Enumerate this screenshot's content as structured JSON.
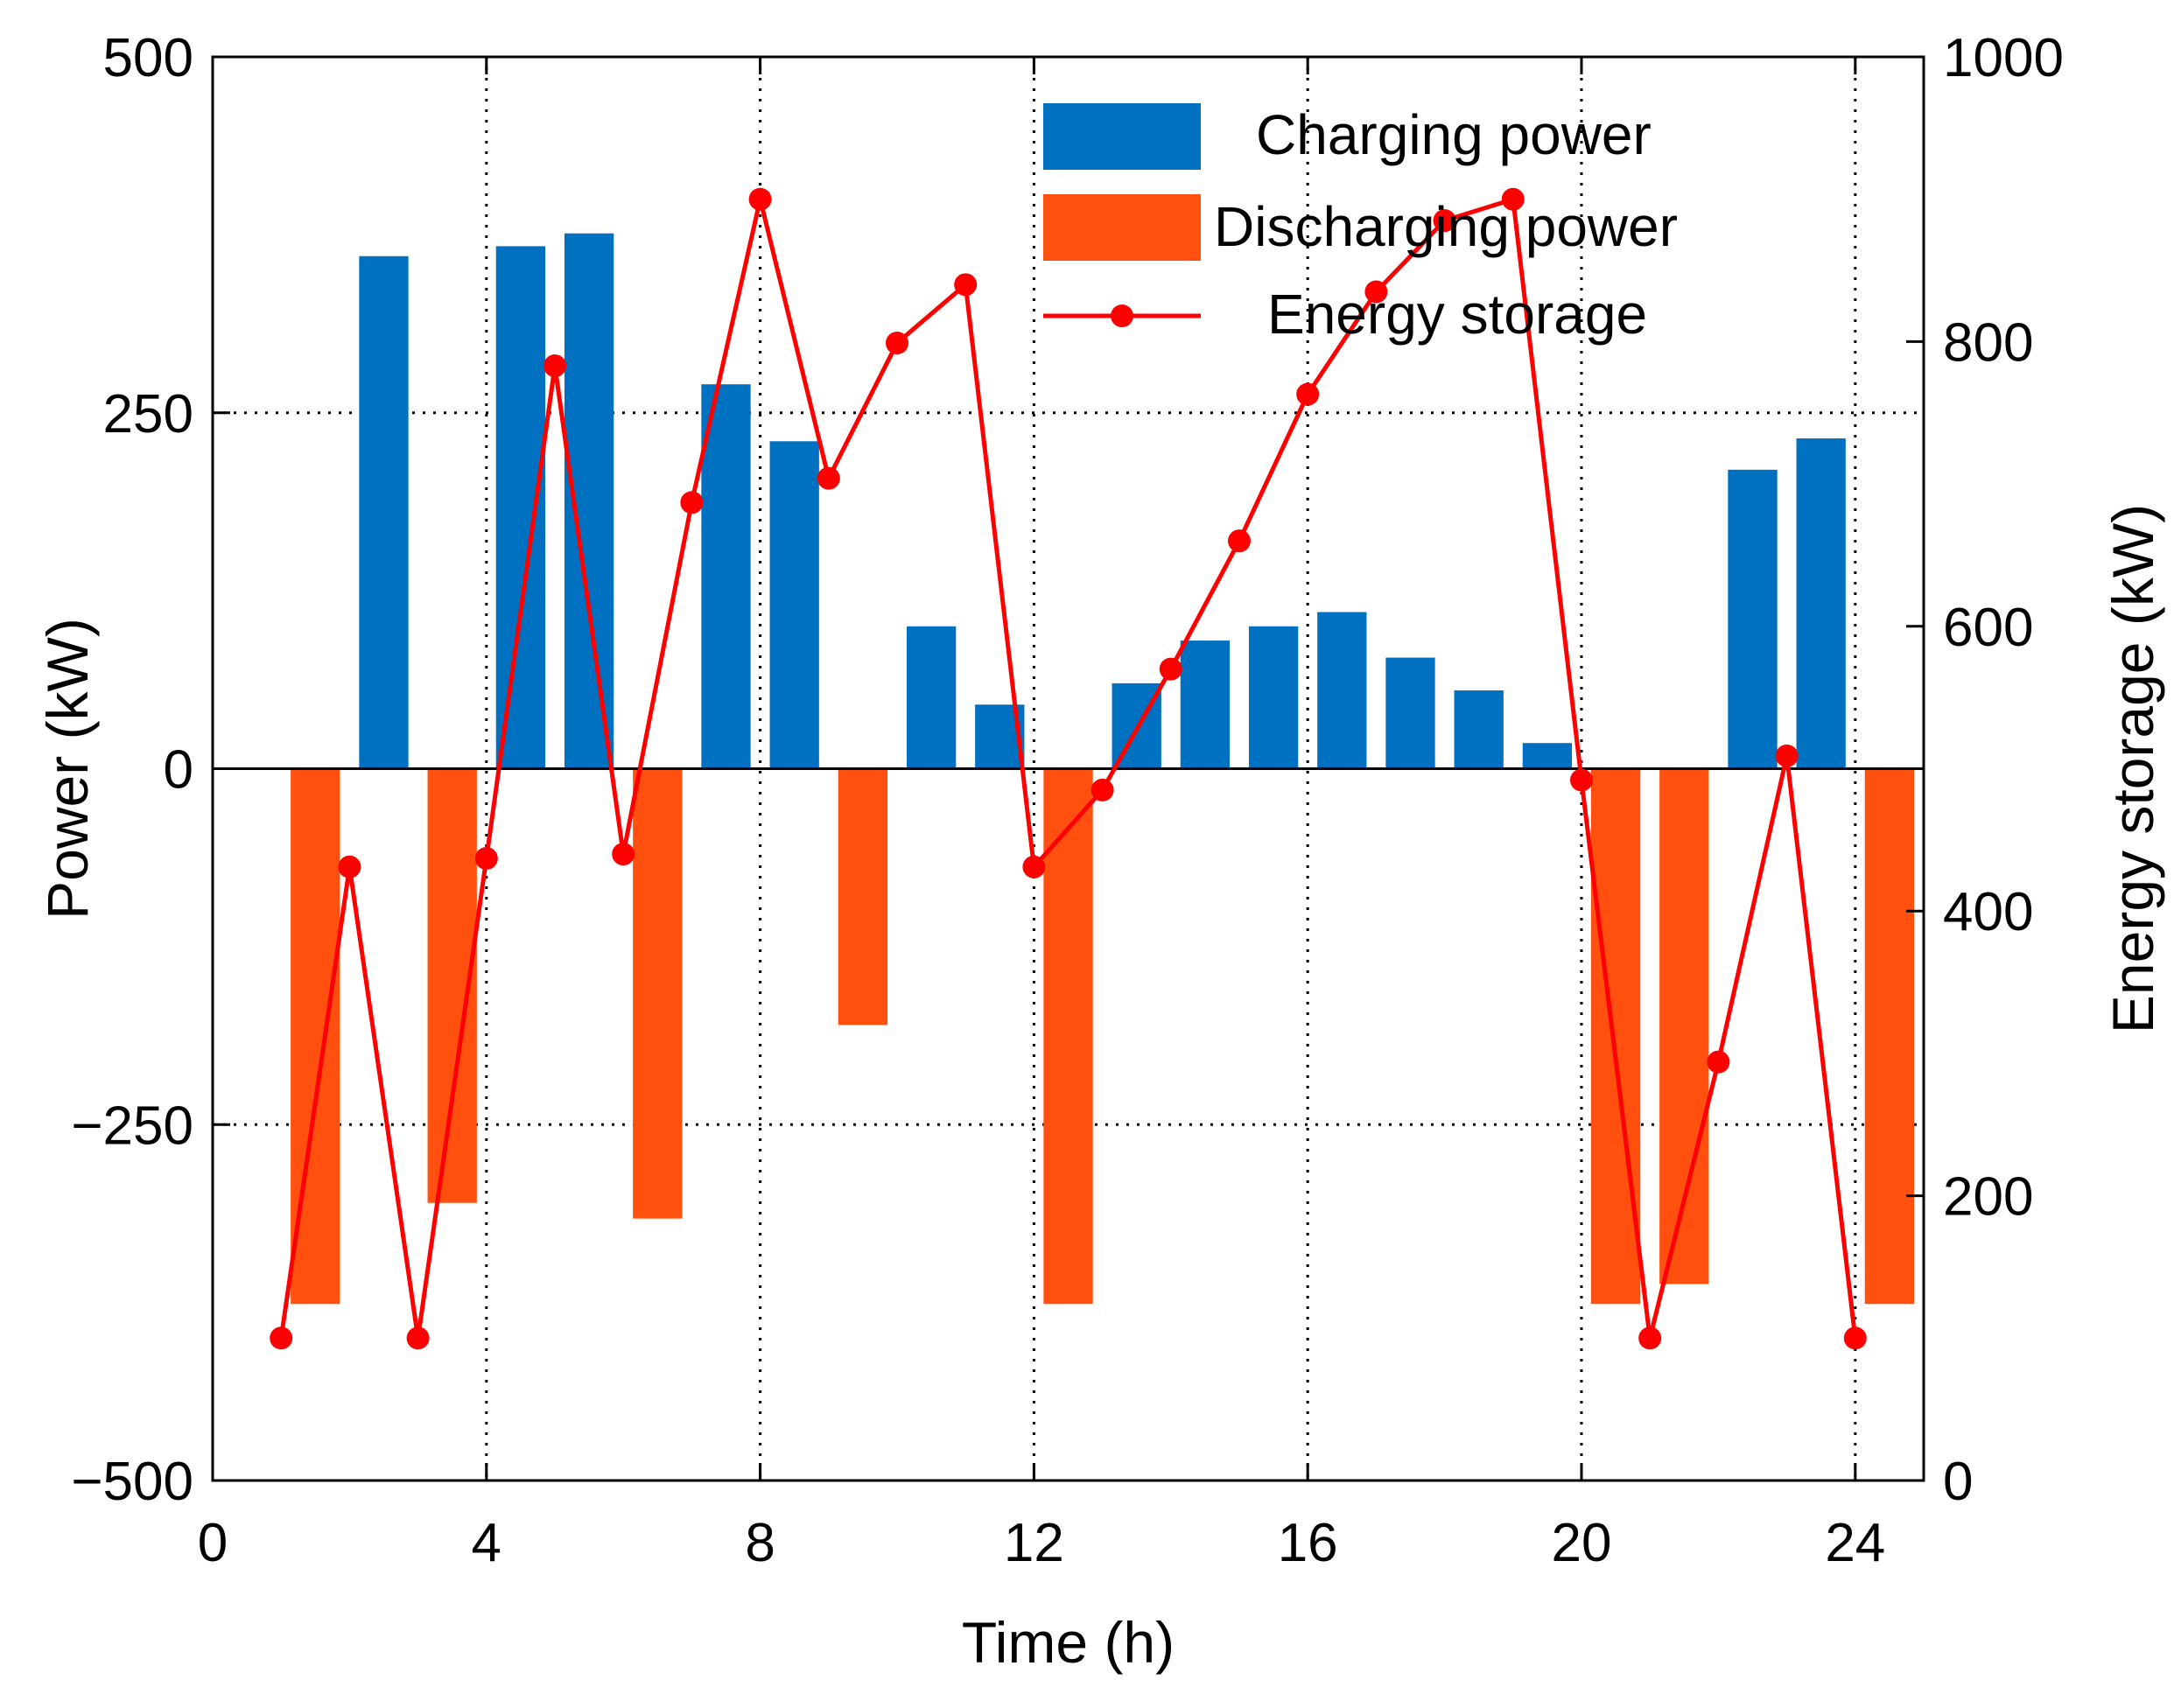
{
  "chart_data": {
    "type": "bar",
    "title": "",
    "x": [
      1,
      2,
      3,
      4,
      5,
      6,
      7,
      8,
      9,
      10,
      11,
      12,
      13,
      14,
      15,
      16,
      17,
      18,
      19,
      20,
      21,
      22,
      23,
      24
    ],
    "xlabel": "Time (h)",
    "ylabel": "Power (kW)",
    "y2label": "Energy storage (kW)",
    "xlim": [
      0,
      25
    ],
    "ylim": [
      -500,
      500
    ],
    "y2lim": [
      0,
      1000
    ],
    "xticks": [
      0,
      4,
      8,
      12,
      16,
      20,
      24
    ],
    "xtick_labels": [
      "0",
      "4",
      "8",
      "12",
      "16",
      "20",
      "24"
    ],
    "yticks": [
      -500,
      -250,
      0,
      250,
      500
    ],
    "ytick_labels": [
      "−500",
      "−250",
      "0",
      "250",
      "500"
    ],
    "y2ticks": [
      0,
      200,
      400,
      600,
      800,
      1000
    ],
    "y2tick_labels": [
      "0",
      "200",
      "400",
      "600",
      "800",
      "1000"
    ],
    "grid": "dotted",
    "legend_position": "top-right",
    "series": [
      {
        "name": "Charging power",
        "kind": "bar",
        "axis": "left",
        "color": "#0070C0",
        "values": [
          0,
          360,
          0,
          367,
          376,
          0,
          270,
          230,
          0,
          100,
          45,
          0,
          60,
          90,
          100,
          110,
          78,
          55,
          18,
          0,
          0,
          210,
          232,
          0
        ]
      },
      {
        "name": "Discharging power",
        "kind": "bar",
        "axis": "left",
        "color": "#FF5010",
        "values": [
          -376,
          0,
          -305,
          0,
          0,
          -316,
          0,
          0,
          -180,
          0,
          0,
          -376,
          0,
          0,
          0,
          0,
          0,
          0,
          0,
          -376,
          -362,
          0,
          0,
          -376
        ]
      },
      {
        "name": "Energy storage",
        "kind": "line",
        "axis": "right",
        "color": "#FF0000",
        "values": [
          100,
          431,
          100,
          437,
          783,
          440,
          687,
          900,
          704,
          799,
          840,
          431,
          485,
          570,
          660,
          763,
          835,
          885,
          900,
          492,
          100,
          294,
          509,
          100
        ]
      }
    ]
  }
}
